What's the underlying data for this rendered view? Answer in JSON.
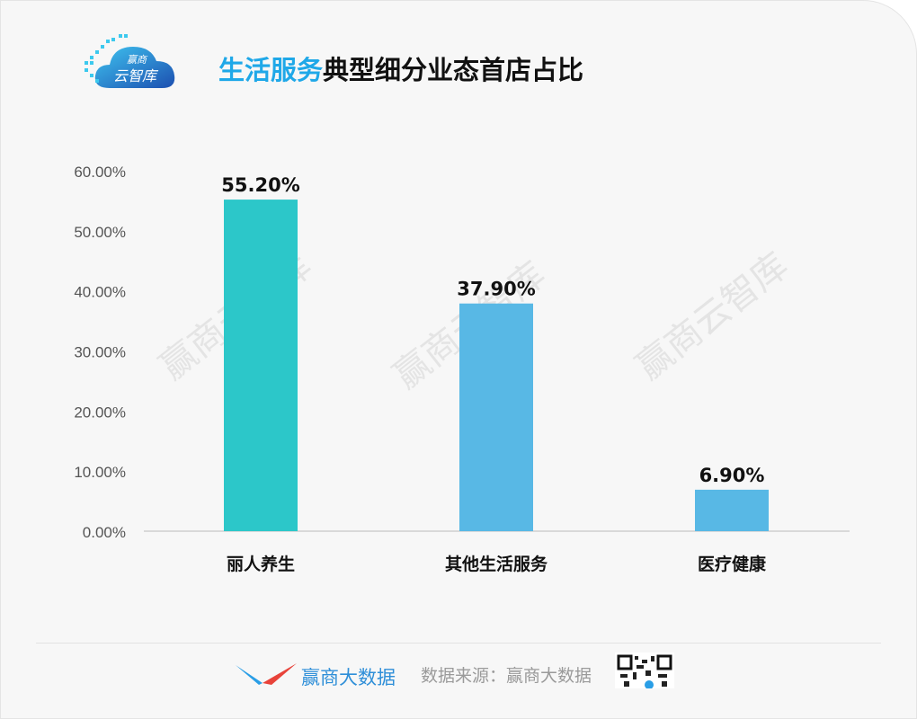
{
  "header": {
    "logo_text_top": "赢商",
    "logo_text_bottom": "云智库",
    "title_highlight": "生活服务",
    "title_rest": "典型细分业态首店占比"
  },
  "watermark": "赢商云智库",
  "footer": {
    "brand": "赢商大数据",
    "source": "数据来源：赢商大数据"
  },
  "colors": {
    "bar_1": "#2cc7c9",
    "bar_other": "#58b8e5",
    "title_highlight": "#1fa8e8"
  },
  "chart_data": {
    "type": "bar",
    "categories": [
      "丽人养生",
      "其他生活服务",
      "医疗健康"
    ],
    "values": [
      55.2,
      37.9,
      6.9
    ],
    "data_labels": [
      "55.20%",
      "37.90%",
      "6.90%"
    ],
    "ylim": [
      0,
      60
    ],
    "yticks": [
      "0.00%",
      "10.00%",
      "20.00%",
      "30.00%",
      "40.00%",
      "50.00%",
      "60.00%"
    ],
    "ytick_values": [
      0,
      10,
      20,
      30,
      40,
      50,
      60
    ],
    "grid": false,
    "legend": "none"
  }
}
